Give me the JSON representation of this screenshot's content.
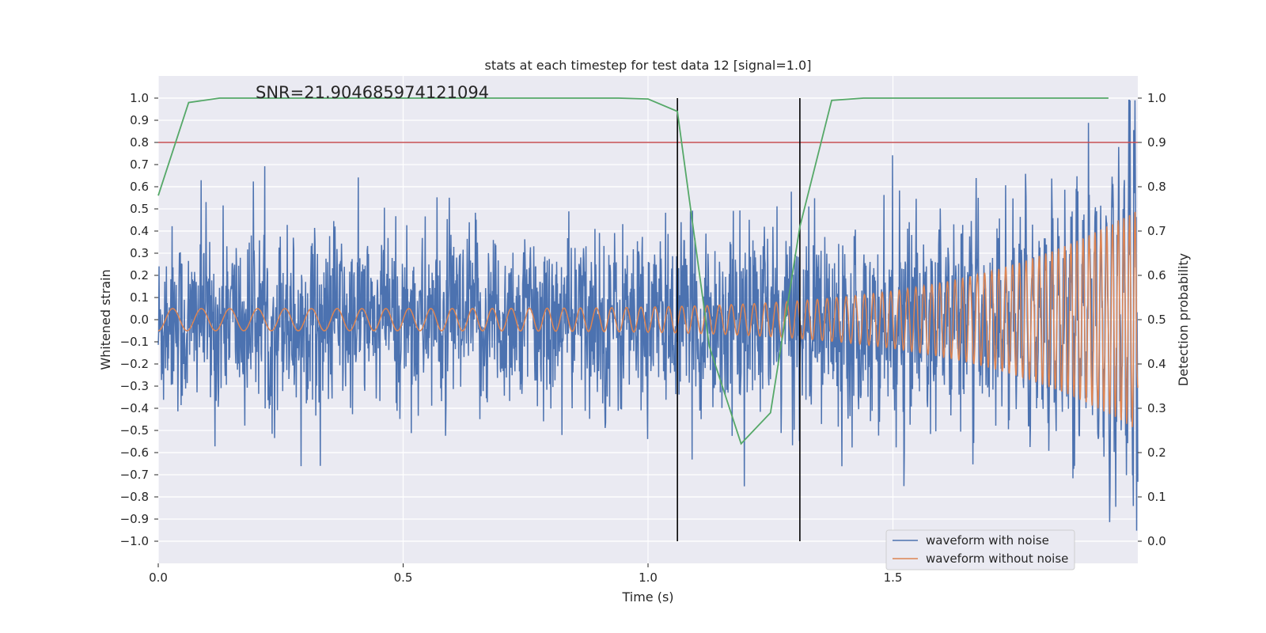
{
  "chart_data": {
    "type": "line",
    "title": "stats at each timestep for test data 12 [signal=1.0]",
    "annotation": "SNR=21.904685974121094",
    "xlabel": "Time (s)",
    "ylabel_left": "Whitened strain",
    "ylabel_right": "Detection probability",
    "xlim": [
      0.0,
      2.0
    ],
    "ylim_left": [
      -1.1,
      1.1
    ],
    "ylim_right": [
      -0.05,
      1.05
    ],
    "x_ticks": [
      0.0,
      0.5,
      1.0,
      1.5
    ],
    "x_tick_labels": [
      "0.0",
      "0.5",
      "1.0",
      "1.5"
    ],
    "y_left_ticks": [
      1.0,
      0.9,
      0.8,
      0.7,
      0.6,
      0.5,
      0.4,
      0.3,
      0.2,
      0.1,
      0.0,
      -0.1,
      -0.2,
      -0.3,
      -0.4,
      -0.5,
      -0.6,
      -0.7,
      -0.8,
      -0.9,
      -1.0
    ],
    "y_left_tick_labels": [
      "1.0",
      "0.9",
      "0.8",
      "0.7",
      "0.6",
      "0.5",
      "0.4",
      "0.3",
      "0.2",
      "0.1",
      "0.0",
      "−0.1",
      "−0.2",
      "−0.3",
      "−0.4",
      "−0.5",
      "−0.6",
      "−0.7",
      "−0.8",
      "−0.9",
      "−1.0"
    ],
    "y_right_ticks": [
      1.0,
      0.9,
      0.8,
      0.7,
      0.6,
      0.5,
      0.4,
      0.3,
      0.2,
      0.1,
      0.0
    ],
    "y_right_tick_labels": [
      "1.0",
      "0.9",
      "0.8",
      "0.7",
      "0.6",
      "0.5",
      "0.4",
      "0.3",
      "0.2",
      "0.1",
      "0.0"
    ],
    "grid": true,
    "legend_position": "bottom-right",
    "series": [
      {
        "name": "waveform with noise",
        "color": "#4c72b0",
        "axis": "left",
        "kind": "noisy",
        "amplitude": 0.2,
        "x_range": [
          0.0,
          2.0
        ]
      },
      {
        "name": "waveform without noise",
        "color": "#dd8452",
        "axis": "left",
        "kind": "chirp",
        "amplitude_start": 0.05,
        "amplitude_end": 0.5,
        "x_range": [
          0.0,
          2.0
        ]
      }
    ],
    "detection_probability": {
      "color": "#55a868",
      "axis": "right",
      "x": [
        0.0,
        0.062,
        0.125,
        0.25,
        0.5,
        0.75,
        0.94,
        1.0,
        1.06,
        1.125,
        1.19,
        1.25,
        1.31,
        1.375,
        1.44,
        1.5,
        1.75,
        1.94
      ],
      "y": [
        0.78,
        0.99,
        1.0,
        1.0,
        1.0,
        1.0,
        1.0,
        0.998,
        0.97,
        0.44,
        0.22,
        0.29,
        0.71,
        0.995,
        1.0,
        1.0,
        1.0,
        1.0
      ]
    },
    "threshold": {
      "value": 0.9,
      "axis": "right",
      "color": "#c44e52"
    },
    "vertical_lines": {
      "x": [
        1.06,
        1.31
      ],
      "color": "#000000",
      "y_range": [
        -1.0,
        1.0
      ]
    }
  }
}
